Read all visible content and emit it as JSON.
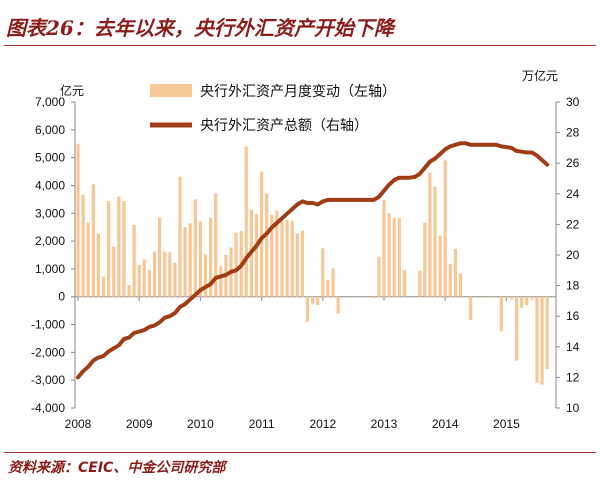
{
  "title": "图表26：去年以来，央行外汇资产开始下降",
  "source": "资料来源：CEIC、中金公司研究部",
  "colors": {
    "bars": "#f8c796",
    "line": "#a13d16",
    "title": "#8b1c1c"
  },
  "chart_data": {
    "type": "bar+line",
    "left_unit": "亿元",
    "right_unit": "万亿元",
    "left_ylim": [
      -4000,
      7000
    ],
    "left_ticks": [
      "7,000",
      "6,000",
      "5,000",
      "4,000",
      "3,000",
      "2,000",
      "1,000",
      "0",
      "-1,000",
      "-2,000",
      "-3,000",
      "-4,000"
    ],
    "right_ylim": [
      10,
      30
    ],
    "right_ticks": [
      "30",
      "28",
      "26",
      "24",
      "22",
      "20",
      "18",
      "16",
      "14",
      "12",
      "10"
    ],
    "x_ticks": [
      "2008",
      "2009",
      "2010",
      "2011",
      "2012",
      "2013",
      "2014",
      "2015"
    ],
    "x_start": "2008-01",
    "x_end": "2015-09",
    "grid": false,
    "legend_placement": "top",
    "series": [
      {
        "name": "央行外汇资产月度变动（左轴）",
        "axis": "left",
        "type": "bar",
        "values": [
          5500,
          3660,
          2660,
          4040,
          2280,
          720,
          3440,
          1800,
          3600,
          3440,
          420,
          2580,
          1140,
          1340,
          960,
          1620,
          2840,
          1620,
          1600,
          1220,
          4320,
          2500,
          2640,
          3500,
          2700,
          1520,
          2850,
          3720,
          1100,
          1500,
          1770,
          2300,
          2370,
          5400,
          3120,
          2970,
          4500,
          3720,
          2940,
          3100,
          2730,
          2760,
          2730,
          2280,
          2370,
          -900,
          -250,
          -300,
          1740,
          600,
          1020,
          -600,
          0,
          0,
          0,
          0,
          0,
          0,
          -50,
          1440,
          3480,
          3000,
          2840,
          2840,
          960,
          0,
          0,
          940,
          2660,
          4460,
          3960,
          2200,
          4900,
          1180,
          1720,
          840,
          0,
          -840,
          0,
          0,
          0,
          -50,
          0,
          -1250,
          -50,
          -100,
          -2300,
          -400,
          -300,
          -100,
          -3100,
          -3160,
          -2600
        ]
      },
      {
        "name": "央行外汇资产总额（右轴）",
        "axis": "right",
        "type": "line",
        "values": [
          12.0,
          12.4,
          12.7,
          13.1,
          13.3,
          13.4,
          13.7,
          13.9,
          14.1,
          14.5,
          14.6,
          14.9,
          15.0,
          15.1,
          15.3,
          15.4,
          15.6,
          15.9,
          16.0,
          16.2,
          16.6,
          16.8,
          17.1,
          17.4,
          17.7,
          17.9,
          18.1,
          18.5,
          18.6,
          18.7,
          18.9,
          19.0,
          19.3,
          19.8,
          20.2,
          20.6,
          21.1,
          21.4,
          21.8,
          22.1,
          22.4,
          22.7,
          23.0,
          23.3,
          23.5,
          23.4,
          23.4,
          23.3,
          23.5,
          23.6,
          23.6,
          23.6,
          23.6,
          23.6,
          23.6,
          23.6,
          23.6,
          23.6,
          23.6,
          23.8,
          24.2,
          24.6,
          24.9,
          25.05,
          25.05,
          25.05,
          25.1,
          25.3,
          25.7,
          26.1,
          26.3,
          26.6,
          26.9,
          27.1,
          27.2,
          27.3,
          27.3,
          27.2,
          27.2,
          27.2,
          27.2,
          27.2,
          27.2,
          27.1,
          27.05,
          27.0,
          26.8,
          26.75,
          26.7,
          26.7,
          26.5,
          26.2,
          25.9
        ]
      }
    ]
  }
}
